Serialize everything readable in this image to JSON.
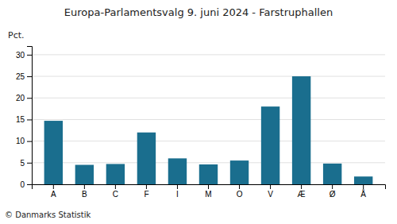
{
  "chart_data": {
    "type": "bar",
    "title": "Europa-Parlamentsvalg 9. juni 2024 - Farstruphallen",
    "ylabel": "Pct.",
    "footer": "© Danmarks Statistik",
    "categories": [
      "A",
      "B",
      "C",
      "F",
      "I",
      "M",
      "O",
      "V",
      "Æ",
      "Ø",
      "Å"
    ],
    "values": [
      14.7,
      4.5,
      4.7,
      12.0,
      6.0,
      4.6,
      5.5,
      18.0,
      25.0,
      4.8,
      1.8
    ],
    "color": "#1a6e8e",
    "ylim": [
      0,
      32
    ],
    "yticks": [
      0,
      5,
      10,
      15,
      20,
      25,
      30
    ],
    "grid": true
  }
}
